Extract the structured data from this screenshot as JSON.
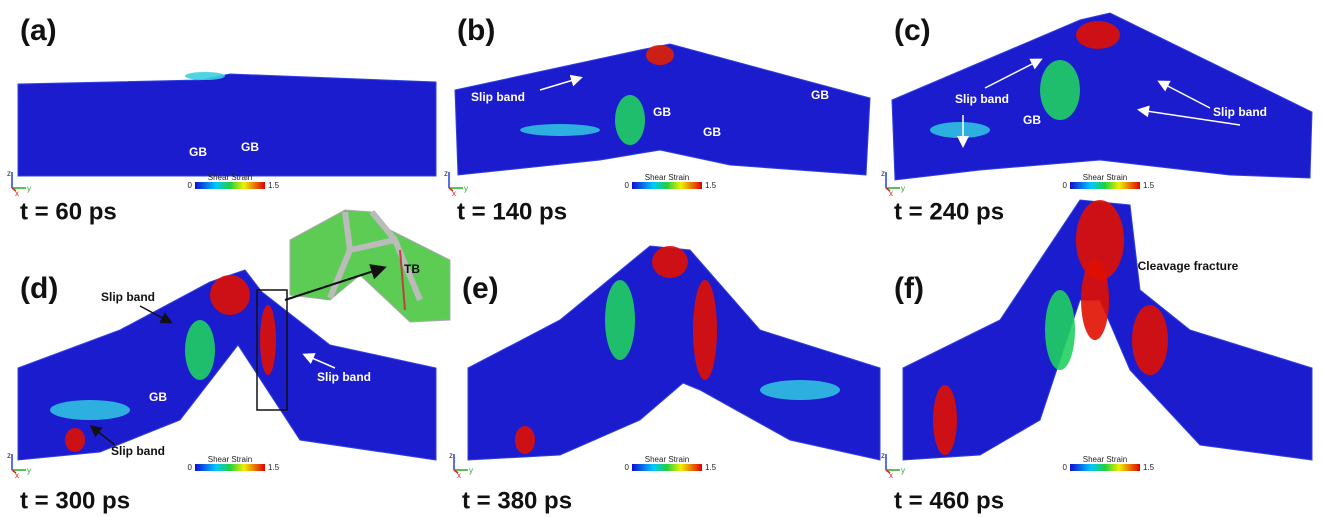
{
  "panels": [
    {
      "label": "(a)",
      "time": "t = 60 ps",
      "colorbar": {
        "title": "Shear Strain",
        "min": 0,
        "max": 1.5
      },
      "triad": [
        "z",
        "x",
        "y"
      ],
      "annotations": [
        "GB",
        "GB"
      ]
    },
    {
      "label": "(b)",
      "time": "t = 140 ps",
      "colorbar": {
        "title": "Shear Strain",
        "min": 0,
        "max": 1.5
      },
      "triad": [
        "z",
        "x",
        "y"
      ],
      "annotations": [
        "Slip band",
        "GB",
        "GB",
        "GB"
      ]
    },
    {
      "label": "(c)",
      "time": "t = 240 ps",
      "colorbar": {
        "title": "Shear Strain",
        "min": 0,
        "max": 1.5
      },
      "triad": [
        "z",
        "x",
        "y"
      ],
      "annotations": [
        "Slip band",
        "Slip band",
        "GB"
      ]
    },
    {
      "label": "(d)",
      "time": "t = 300 ps",
      "colorbar": {
        "title": "Shear Strain",
        "min": 0,
        "max": 1.5
      },
      "triad": [
        "z",
        "x",
        "y"
      ],
      "annotations": [
        "Slip band",
        "GB",
        "Slip band",
        "Slip band"
      ]
    },
    {
      "label": "(e)",
      "time": "t = 380 ps",
      "colorbar": {
        "title": "Shear Strain",
        "min": 0,
        "max": 1.5
      },
      "triad": [
        "z",
        "x",
        "y"
      ],
      "annotations": []
    },
    {
      "label": "(f)",
      "time": "t = 460 ps",
      "colorbar": {
        "title": "Shear Strain",
        "min": 0,
        "max": 1.5
      },
      "triad": [
        "z",
        "x",
        "y"
      ],
      "annotations": [
        "Cleavage fracture"
      ]
    }
  ],
  "inset": {
    "label": "TB"
  }
}
